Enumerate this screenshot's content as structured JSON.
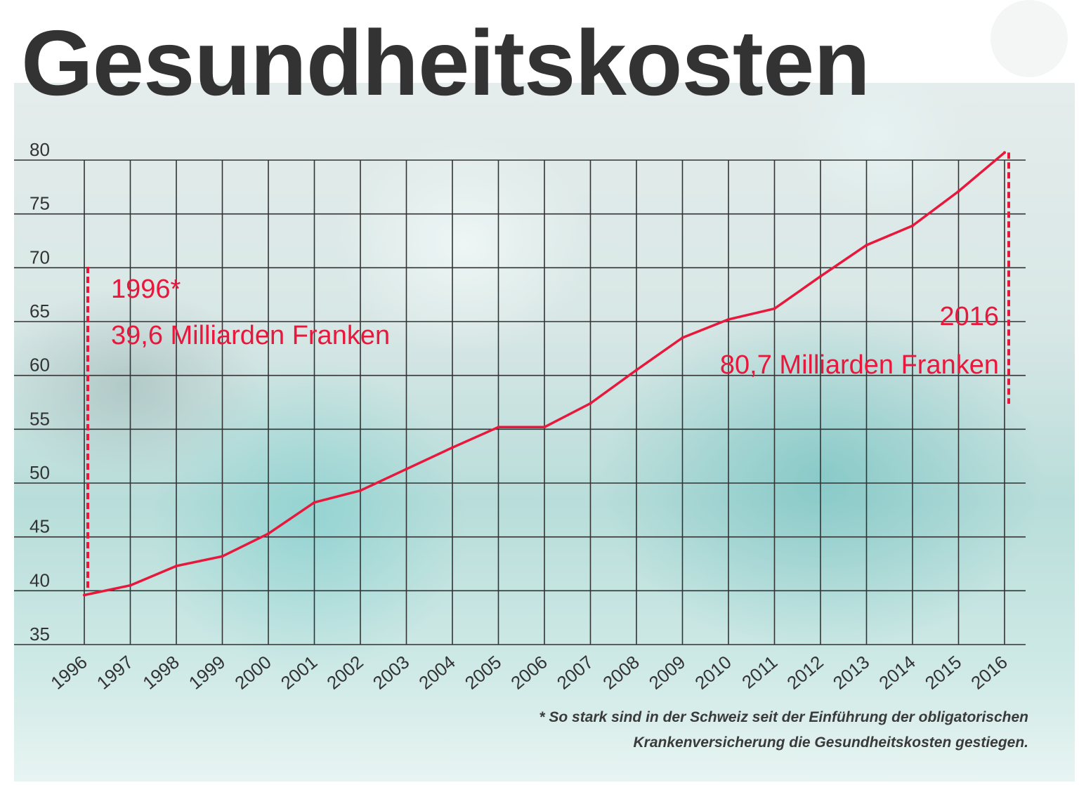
{
  "title": "Gesundheitskosten",
  "colors": {
    "line": "#e8173c",
    "grid": "#333333",
    "title": "#333333"
  },
  "annotations": {
    "start": {
      "year": "1996*",
      "value": "39,6 Milliarden Franken"
    },
    "end": {
      "year": "2016",
      "value": "80,7 Milliarden Franken"
    }
  },
  "footnote": {
    "line1": "* So stark sind in der Schweiz seit der Einführung der obligatorischen",
    "line2": "Krankenversicherung die Gesundheitskosten gestiegen."
  },
  "chart_data": {
    "type": "line",
    "title": "Gesundheitskosten",
    "xlabel": "",
    "ylabel": "",
    "x": [
      "1996",
      "1997",
      "1998",
      "1999",
      "2000",
      "2001",
      "2002",
      "2003",
      "2004",
      "2005",
      "2006",
      "2007",
      "2008",
      "2009",
      "2010",
      "2011",
      "2012",
      "2013",
      "2014",
      "2015",
      "2016"
    ],
    "y": [
      39.6,
      40.5,
      42.3,
      43.2,
      45.3,
      48.2,
      49.3,
      51.3,
      53.3,
      55.2,
      55.2,
      57.4,
      60.5,
      63.5,
      65.2,
      66.2,
      69.2,
      72.1,
      73.9,
      77.1,
      80.7
    ],
    "yticks": [
      35,
      40,
      45,
      50,
      55,
      60,
      65,
      70,
      75,
      80
    ],
    "ylim": [
      35,
      80
    ],
    "grid": true,
    "legend": "none"
  }
}
